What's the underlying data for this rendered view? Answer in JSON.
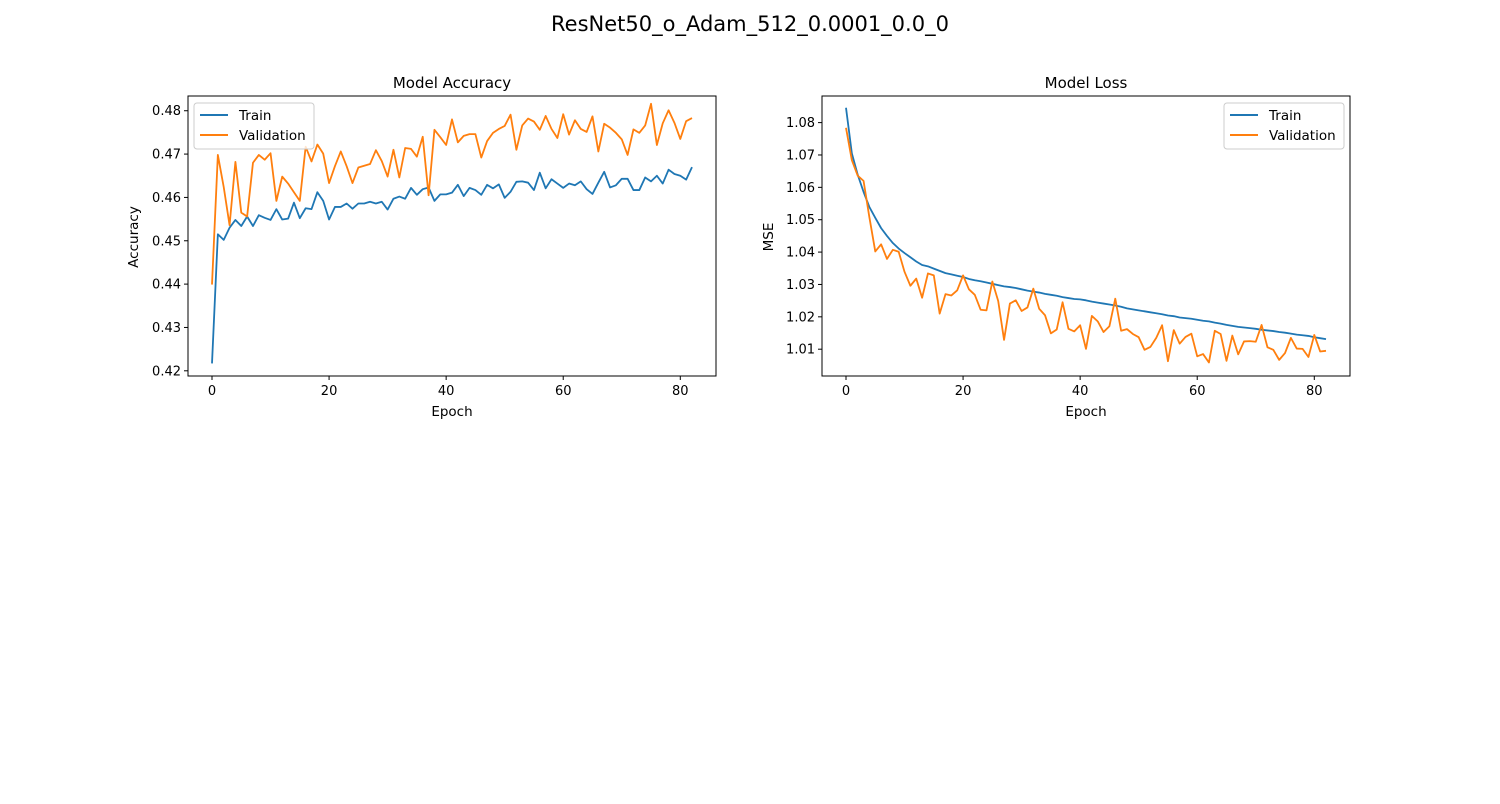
{
  "figure": {
    "suptitle": "ResNet50_o_Adam_512_0.0001_0.0_0",
    "colors": {
      "train": "#1f77b4",
      "validation": "#ff7f0e"
    }
  },
  "chart_data": [
    {
      "type": "line",
      "title": "Model Accuracy",
      "xlabel": "Epoch",
      "ylabel": "Accuracy",
      "xlim": [
        -4.1,
        86.1
      ],
      "ylim": [
        0.4188,
        0.4834
      ],
      "xticks": [
        0,
        20,
        40,
        60,
        80
      ],
      "yticks": [
        0.42,
        0.43,
        0.44,
        0.45,
        0.46,
        0.47,
        0.48
      ],
      "ytick_labels": [
        "0.42",
        "0.43",
        "0.44",
        "0.45",
        "0.46",
        "0.47",
        "0.48"
      ],
      "legend": "upper left",
      "grid": false,
      "series": [
        {
          "name": "Train",
          "color": "#1f77b4",
          "values": [
            0.4217,
            0.4515,
            0.4502,
            0.453,
            0.4548,
            0.4534,
            0.4556,
            0.4534,
            0.4559,
            0.4553,
            0.4548,
            0.4573,
            0.4549,
            0.4551,
            0.4588,
            0.4552,
            0.4575,
            0.4573,
            0.4612,
            0.4592,
            0.4549,
            0.4578,
            0.4578,
            0.4586,
            0.4574,
            0.4586,
            0.4586,
            0.459,
            0.4586,
            0.459,
            0.4572,
            0.4597,
            0.4602,
            0.4597,
            0.4622,
            0.4606,
            0.4619,
            0.4623,
            0.4592,
            0.4607,
            0.4607,
            0.4611,
            0.4629,
            0.4603,
            0.4622,
            0.4617,
            0.4606,
            0.4629,
            0.4621,
            0.463,
            0.4599,
            0.4613,
            0.4636,
            0.4637,
            0.4634,
            0.4617,
            0.4657,
            0.4621,
            0.4642,
            0.4632,
            0.4622,
            0.4632,
            0.4628,
            0.4637,
            0.4619,
            0.4608,
            0.4634,
            0.4659,
            0.4623,
            0.4628,
            0.4643,
            0.4643,
            0.4617,
            0.4617,
            0.4646,
            0.4637,
            0.465,
            0.4632,
            0.4664,
            0.4654,
            0.465,
            0.4641,
            0.467
          ]
        },
        {
          "name": "Validation",
          "color": "#ff7f0e",
          "values": [
            0.4399,
            0.4698,
            0.4624,
            0.4536,
            0.4682,
            0.4565,
            0.4556,
            0.468,
            0.4698,
            0.4687,
            0.4702,
            0.4592,
            0.4648,
            0.4632,
            0.4612,
            0.4592,
            0.4717,
            0.4683,
            0.4722,
            0.4701,
            0.4633,
            0.4672,
            0.4706,
            0.4672,
            0.4633,
            0.4669,
            0.4673,
            0.4677,
            0.4709,
            0.4684,
            0.4648,
            0.471,
            0.4646,
            0.4714,
            0.4712,
            0.4694,
            0.474,
            0.4605,
            0.4756,
            0.4739,
            0.4721,
            0.478,
            0.4727,
            0.4742,
            0.4746,
            0.4746,
            0.4692,
            0.473,
            0.4749,
            0.4758,
            0.4765,
            0.4791,
            0.471,
            0.4766,
            0.4782,
            0.4775,
            0.4756,
            0.4788,
            0.4758,
            0.4737,
            0.4792,
            0.4745,
            0.4778,
            0.4758,
            0.4751,
            0.4787,
            0.4706,
            0.477,
            0.4761,
            0.4749,
            0.4734,
            0.4698,
            0.4757,
            0.4749,
            0.4766,
            0.4816,
            0.4721,
            0.4771,
            0.4801,
            0.4772,
            0.4735,
            0.4776,
            0.4783
          ]
        }
      ]
    },
    {
      "type": "line",
      "title": "Model Loss",
      "xlabel": "Epoch",
      "ylabel": "MSE",
      "xlim": [
        -4.1,
        86.1
      ],
      "ylim": [
        1.00172,
        1.08822
      ],
      "xticks": [
        0,
        20,
        40,
        60,
        80
      ],
      "yticks": [
        1.01,
        1.02,
        1.03,
        1.04,
        1.05,
        1.06,
        1.07,
        1.08
      ],
      "ytick_labels": [
        "1.01",
        "1.02",
        "1.03",
        "1.04",
        "1.05",
        "1.06",
        "1.07",
        "1.08"
      ],
      "legend": "upper right",
      "grid": false,
      "series": [
        {
          "name": "Train",
          "color": "#1f77b4",
          "values": [
            1.0846,
            1.0705,
            1.0639,
            1.0586,
            1.0539,
            1.0506,
            1.0474,
            1.045,
            1.0428,
            1.0411,
            1.0397,
            1.0384,
            1.0371,
            1.036,
            1.0356,
            1.0349,
            1.0342,
            1.0335,
            1.0331,
            1.0327,
            1.0323,
            1.0317,
            1.0313,
            1.031,
            1.0306,
            1.0302,
            1.0298,
            1.0294,
            1.0292,
            1.0289,
            1.0285,
            1.0281,
            1.0278,
            1.0275,
            1.0271,
            1.0268,
            1.0265,
            1.0261,
            1.0258,
            1.0255,
            1.0254,
            1.0251,
            1.0247,
            1.0244,
            1.0241,
            1.0238,
            1.0235,
            1.0231,
            1.0226,
            1.0223,
            1.022,
            1.0217,
            1.0214,
            1.0211,
            1.0208,
            1.0204,
            1.0202,
            1.0198,
            1.0196,
            1.0194,
            1.0191,
            1.0188,
            1.0186,
            1.0182,
            1.0179,
            1.0175,
            1.0172,
            1.0169,
            1.0167,
            1.0165,
            1.0163,
            1.016,
            1.0158,
            1.0156,
            1.0153,
            1.0151,
            1.0148,
            1.0145,
            1.0143,
            1.0141,
            1.0137,
            1.0134,
            1.0131
          ]
        },
        {
          "name": "Validation",
          "color": "#ff7f0e",
          "values": [
            1.0784,
            1.0684,
            1.0636,
            1.062,
            1.0507,
            1.0402,
            1.0424,
            1.0379,
            1.0407,
            1.0401,
            1.0339,
            1.0296,
            1.0318,
            1.0259,
            1.0334,
            1.0328,
            1.021,
            1.027,
            1.0266,
            1.0282,
            1.0328,
            1.0285,
            1.0268,
            1.0222,
            1.022,
            1.0309,
            1.0249,
            1.0129,
            1.0241,
            1.0251,
            1.0218,
            1.0229,
            1.0287,
            1.0225,
            1.0205,
            1.0149,
            1.0161,
            1.0245,
            1.0163,
            1.0155,
            1.0174,
            1.0101,
            1.0203,
            1.0186,
            1.0153,
            1.0171,
            1.0256,
            1.0157,
            1.0162,
            1.0147,
            1.0137,
            1.0098,
            1.0107,
            1.0135,
            1.0174,
            1.0063,
            1.0159,
            1.0117,
            1.0138,
            1.0148,
            1.0078,
            1.0085,
            1.0059,
            1.0157,
            1.0147,
            1.0064,
            1.0142,
            1.0084,
            1.0124,
            1.0125,
            1.0123,
            1.0175,
            1.0106,
            1.0098,
            1.0067,
            1.0088,
            1.0135,
            1.0102,
            1.0101,
            1.0076,
            1.0144,
            1.0093,
            1.0095
          ]
        }
      ]
    }
  ]
}
